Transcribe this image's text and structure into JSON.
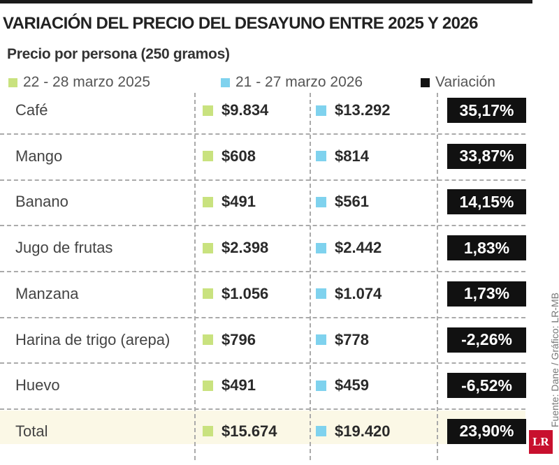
{
  "header": {
    "title": "VARIACIÓN DEL PRECIO DEL DESAYUNO ENTRE 2025 Y 2026",
    "subtitle": "Precio por persona (250 gramos)"
  },
  "legend": [
    "22 - 28 marzo 2025",
    "21 - 27 marzo 2026",
    "Variación"
  ],
  "table": {
    "rows": [
      [
        "Café",
        "$9.834",
        "$13.292",
        "35,17%"
      ],
      [
        "Mango",
        "$608",
        "$814",
        "33,87%"
      ],
      [
        "Banano",
        "$491",
        "$561",
        "14,15%"
      ],
      [
        "Jugo de frutas",
        "$2.398",
        "$2.442",
        "1,83%"
      ],
      [
        "Manzana",
        "$1.056",
        "$1.074",
        "1,73%"
      ],
      [
        "Harina de trigo (arepa)",
        "$796",
        "$778",
        "-2,26%"
      ],
      [
        "Huevo",
        "$491",
        "$459",
        "-6,52%"
      ],
      [
        "Total",
        "$15.674",
        "$19.420",
        "23,90%"
      ]
    ]
  },
  "footer": {
    "source": "Fuente: Dane / Gráfico: LR-MB",
    "logo": "LR"
  }
}
